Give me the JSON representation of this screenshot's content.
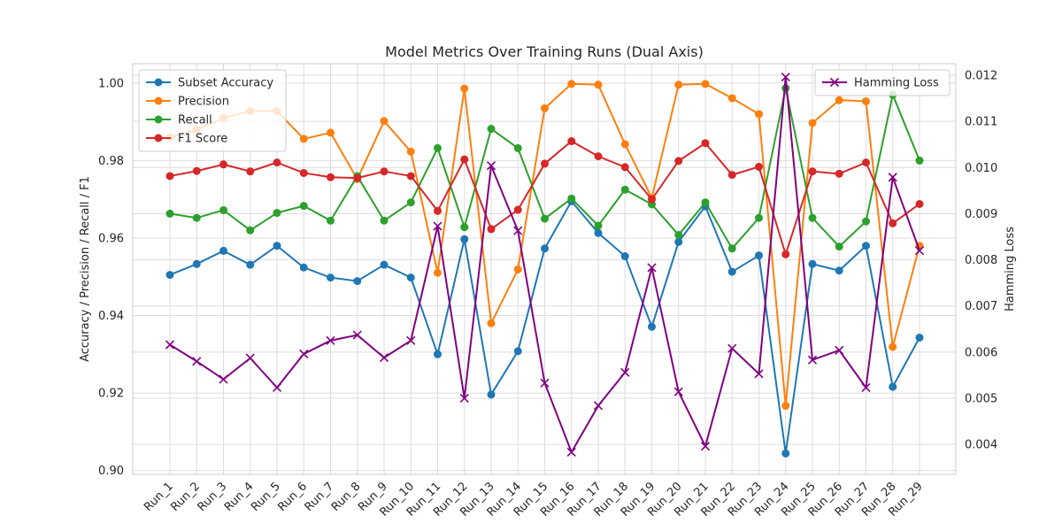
{
  "chart_data": {
    "type": "line",
    "title": "Model Metrics Over Training Runs (Dual Axis)",
    "xlabel": "",
    "ylabel_left": "Accuracy / Precision / Recall / F1",
    "ylabel_right": "Hamming Loss",
    "ylim_left": [
      0.899,
      1.005
    ],
    "ylim_right": [
      0.00335,
      0.01225
    ],
    "yticks_left": [
      "0.90",
      "0.92",
      "0.94",
      "0.96",
      "0.98",
      "1.00"
    ],
    "yticks_right": [
      "0.004",
      "0.005",
      "0.006",
      "0.007",
      "0.008",
      "0.009",
      "0.010",
      "0.011",
      "0.012"
    ],
    "grid": true,
    "categories": [
      "Run_1",
      "Run_2",
      "Run_3",
      "Run_4",
      "Run_5",
      "Run_6",
      "Run_7",
      "Run_8",
      "Run_9",
      "Run_10",
      "Run_11",
      "Run_12",
      "Run_13",
      "Run_14",
      "Run_15",
      "Run_16",
      "Run_17",
      "Run_18",
      "Run_19",
      "Run_20",
      "Run_21",
      "Run_22",
      "Run_23",
      "Run_24",
      "Run_25",
      "Run_26",
      "Run_27",
      "Run_28",
      "Run_29"
    ],
    "legend_left_position": "top-left",
    "legend_right_position": "top-right",
    "series": [
      {
        "name": "Subset Accuracy",
        "axis": "left",
        "color": "#1f77b4",
        "marker": "circle",
        "values": [
          0.9505,
          0.9533,
          0.9567,
          0.9531,
          0.958,
          0.9524,
          0.9498,
          0.9489,
          0.9531,
          0.9498,
          0.93,
          0.9597,
          0.9196,
          0.9308,
          0.9573,
          0.9695,
          0.9613,
          0.9553,
          0.9371,
          0.959,
          0.9682,
          0.9513,
          0.9555,
          0.9044,
          0.9533,
          0.9516,
          0.958,
          0.9216,
          0.9343
        ]
      },
      {
        "name": "Precision",
        "axis": "left",
        "color": "#ff7f0e",
        "marker": "circle",
        "values": [
          0.986,
          0.988,
          0.991,
          0.9928,
          0.9928,
          0.9856,
          0.9872,
          0.9752,
          0.9902,
          0.9823,
          0.951,
          0.9986,
          0.938,
          0.9519,
          0.9935,
          0.9998,
          0.9996,
          0.9842,
          0.9704,
          0.9996,
          0.9998,
          0.9961,
          0.992,
          0.9167,
          0.9897,
          0.9956,
          0.9953,
          0.9319,
          0.958
        ]
      },
      {
        "name": "Recall",
        "axis": "left",
        "color": "#2ca02c",
        "marker": "circle",
        "values": [
          0.9663,
          0.9652,
          0.9672,
          0.962,
          0.9665,
          0.9683,
          0.9645,
          0.976,
          0.9645,
          0.9692,
          0.9832,
          0.9628,
          0.9882,
          0.9832,
          0.965,
          0.9702,
          0.9632,
          0.9725,
          0.9687,
          0.9608,
          0.9692,
          0.9573,
          0.9652,
          0.9987,
          0.9652,
          0.9578,
          0.9643,
          0.997,
          0.98
        ]
      },
      {
        "name": "F1 Score",
        "axis": "left",
        "color": "#d62728",
        "marker": "circle",
        "values": [
          0.976,
          0.9773,
          0.979,
          0.9772,
          0.9795,
          0.9768,
          0.9757,
          0.9755,
          0.9772,
          0.976,
          0.967,
          0.9803,
          0.9623,
          0.9673,
          0.9792,
          0.985,
          0.9811,
          0.9783,
          0.97,
          0.9799,
          0.9845,
          0.9763,
          0.9784,
          0.9558,
          0.9772,
          0.9766,
          0.9795,
          0.9638,
          0.9688
        ]
      },
      {
        "name": "Hamming Loss",
        "axis": "right",
        "color": "#800080",
        "marker": "x",
        "values": [
          0.00616,
          0.0058,
          0.00541,
          0.00587,
          0.00523,
          0.00596,
          0.00625,
          0.00637,
          0.00588,
          0.00625,
          0.00873,
          0.005,
          0.01004,
          0.00863,
          0.00533,
          0.00383,
          0.00484,
          0.00556,
          0.00783,
          0.00514,
          0.00396,
          0.00608,
          0.00553,
          0.01196,
          0.00583,
          0.00604,
          0.00523,
          0.00979,
          0.0082
        ]
      }
    ]
  }
}
